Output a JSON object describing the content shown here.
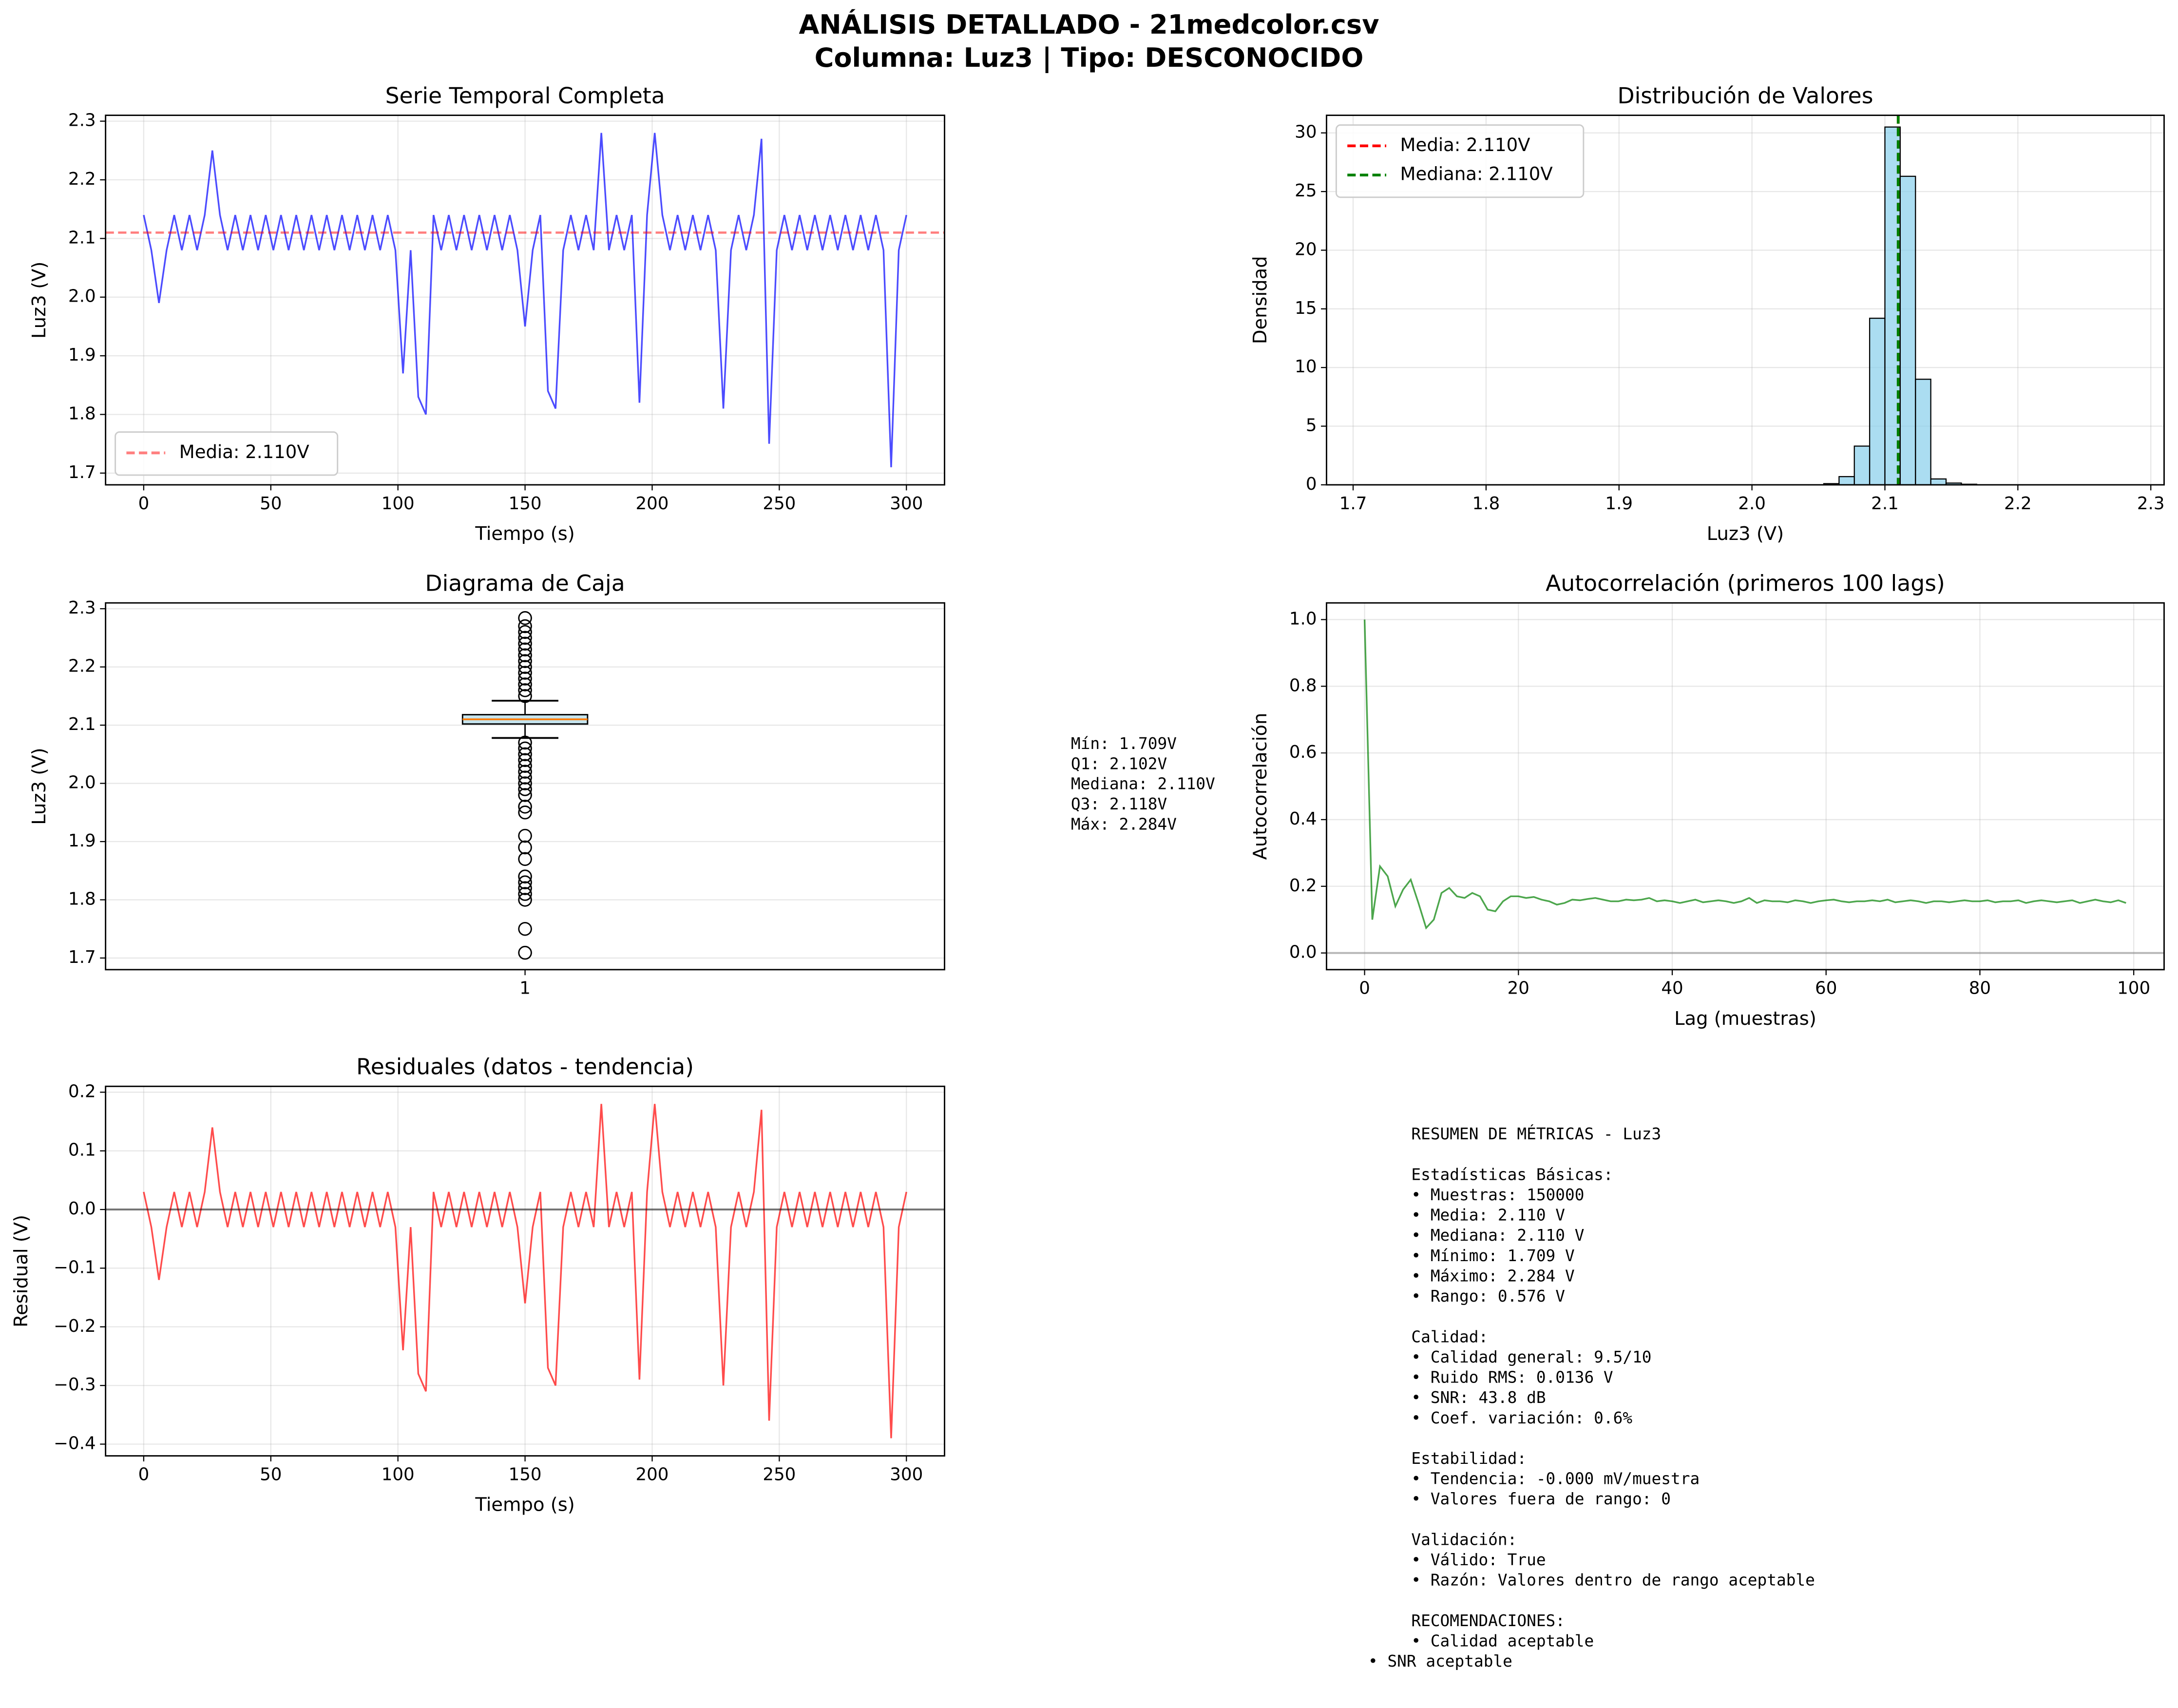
{
  "title_lines": [
    "ANÁLISIS DETALLADO - 21medcolor.csv",
    "Columna: Luz3 | Tipo: DESCONOCIDO"
  ],
  "chart_data": [
    {
      "type": "line",
      "title": "Serie Temporal Completa",
      "xlabel": "Tiempo (s)",
      "ylabel": "Luz3 (V)",
      "grid": true,
      "legend": "lower left",
      "color": "#0000ff",
      "x": [
        0,
        3,
        6,
        9,
        12,
        15,
        18,
        21,
        24,
        27,
        30,
        33,
        36,
        39,
        42,
        45,
        48,
        51,
        54,
        57,
        60,
        63,
        66,
        69,
        72,
        75,
        78,
        81,
        84,
        87,
        90,
        93,
        96,
        99,
        102,
        105,
        108,
        111,
        114,
        117,
        120,
        123,
        126,
        129,
        132,
        135,
        138,
        141,
        144,
        147,
        150,
        153,
        156,
        159,
        162,
        165,
        168,
        171,
        174,
        177,
        180,
        183,
        186,
        189,
        192,
        195,
        198,
        201,
        204,
        207,
        210,
        213,
        216,
        219,
        222,
        225,
        228,
        231,
        234,
        237,
        240,
        243,
        246,
        249,
        252,
        255,
        258,
        261,
        264,
        267,
        270,
        273,
        276,
        279,
        282,
        285,
        288,
        291,
        294,
        297,
        300
      ],
      "values": [
        2.14,
        2.08,
        1.99,
        2.08,
        2.14,
        2.08,
        2.14,
        2.08,
        2.14,
        2.25,
        2.14,
        2.08,
        2.14,
        2.08,
        2.14,
        2.08,
        2.14,
        2.08,
        2.14,
        2.08,
        2.14,
        2.08,
        2.14,
        2.08,
        2.14,
        2.08,
        2.14,
        2.08,
        2.14,
        2.08,
        2.14,
        2.08,
        2.14,
        2.08,
        1.87,
        2.08,
        1.83,
        1.8,
        2.14,
        2.08,
        2.14,
        2.08,
        2.14,
        2.08,
        2.14,
        2.08,
        2.14,
        2.08,
        2.14,
        2.08,
        1.95,
        2.08,
        2.14,
        1.84,
        1.81,
        2.08,
        2.14,
        2.08,
        2.14,
        2.08,
        2.28,
        2.08,
        2.14,
        2.08,
        2.14,
        1.82,
        2.14,
        2.28,
        2.14,
        2.08,
        2.14,
        2.08,
        2.14,
        2.08,
        2.14,
        2.08,
        1.81,
        2.08,
        2.14,
        2.08,
        2.14,
        2.27,
        1.75,
        2.08,
        2.14,
        2.08,
        2.14,
        2.08,
        2.14,
        2.08,
        2.14,
        2.08,
        2.14,
        2.08,
        2.14,
        2.08,
        2.14,
        2.08,
        1.71,
        2.08,
        2.14
      ],
      "hlines": [
        {
          "value": 2.11,
          "name": "Media: 2.110V",
          "color": "#ff0000"
        }
      ],
      "xlim": [
        -15,
        315
      ],
      "ylim": [
        1.68,
        2.31
      ],
      "xticks": [
        0,
        50,
        100,
        150,
        200,
        250,
        300
      ],
      "yticks": [
        1.7,
        1.8,
        1.9,
        {
          "value": 2,
          "label": "2.0"
        },
        2.1,
        2.2,
        2.3
      ]
    },
    {
      "type": "histogram",
      "title": "Distribución de Valores",
      "xlabel": "Luz3 (V)",
      "ylabel": "Densidad",
      "grid": true,
      "legend": "upper left",
      "color": "#87ceeb",
      "bins": [
        1.709,
        1.7205,
        1.732,
        1.7435,
        1.755,
        1.7665,
        1.778,
        1.7895,
        1.801,
        1.8125,
        1.824,
        1.8355,
        1.847,
        1.8585,
        1.87,
        1.8815,
        1.893,
        1.9045,
        1.916,
        1.9275,
        1.939,
        1.9505,
        1.962,
        1.9735,
        1.985,
        1.9965,
        2.008,
        2.0195,
        2.031,
        2.0425,
        2.054,
        2.0655,
        2.077,
        2.0885,
        2.1,
        2.1115,
        2.123,
        2.1345,
        2.146,
        2.1575,
        2.169,
        2.1805,
        2.192,
        2.2035,
        2.215,
        2.2265,
        2.238,
        2.2495,
        2.261,
        2.2725,
        2.284
      ],
      "counts": [
        0.01,
        0.01,
        0.01,
        0.01,
        0.01,
        0.01,
        0.01,
        0.01,
        0.01,
        0.01,
        0.01,
        0.01,
        0.01,
        0.01,
        0.01,
        0.01,
        0.01,
        0.01,
        0.01,
        0.01,
        0.01,
        0.01,
        0.01,
        0.01,
        0.01,
        0.01,
        0.01,
        0.01,
        0.01,
        0.01,
        0.1,
        0.7,
        3.3,
        14.2,
        30.5,
        26.3,
        9.0,
        0.5,
        0.15,
        0.05,
        0.01,
        0.01,
        0.01,
        0.01,
        0.01,
        0.01,
        0.01,
        0.01,
        0.01,
        0.01
      ],
      "vlines": [
        {
          "value": 2.11,
          "name": "Media: 2.110V",
          "color": "#ff0000"
        },
        {
          "value": 2.11,
          "name": "Mediana: 2.110V",
          "color": "#008000"
        }
      ],
      "xlim": [
        1.68,
        2.31
      ],
      "ylim": [
        0,
        31.5
      ],
      "xticks": [
        1.7,
        1.8,
        1.9,
        {
          "value": 2,
          "label": "2.0"
        },
        2.1,
        2.2,
        2.3
      ],
      "yticks": [
        0,
        5,
        10,
        15,
        20,
        25,
        30
      ]
    },
    {
      "type": "box",
      "title": "Diagrama de Caja",
      "ylabel": "Luz3 (V)",
      "grid": true,
      "categories": [
        "1"
      ],
      "q1": 2.102,
      "median": 2.11,
      "q3": 2.118,
      "whisker_low": 2.078,
      "whisker_high": 2.142,
      "outliers": [
        2.15,
        2.16,
        2.17,
        2.18,
        2.19,
        2.2,
        2.21,
        2.22,
        2.23,
        2.24,
        2.25,
        2.26,
        2.27,
        2.284,
        2.07,
        2.06,
        2.05,
        2.04,
        2.03,
        2.02,
        2.01,
        2.0,
        1.99,
        1.98,
        1.96,
        1.95,
        1.91,
        1.89,
        1.87,
        1.84,
        1.83,
        1.82,
        1.81,
        1.8,
        1.75,
        1.709
      ],
      "annotation_lines": [
        "Mín: 1.709V",
        "Q1: 2.102V",
        "Mediana: 2.110V",
        "Q3: 2.118V",
        "Máx: 2.284V"
      ],
      "ylim": [
        1.68,
        2.31
      ],
      "yticks": [
        1.7,
        1.8,
        1.9,
        {
          "value": 2,
          "label": "2.0"
        },
        2.1,
        2.2,
        2.3
      ]
    },
    {
      "type": "line",
      "title": "Autocorrelación (primeros 100 lags)",
      "xlabel": "Lag (muestras)",
      "ylabel": "Autocorrelación",
      "grid": true,
      "color": "#008000",
      "x": [
        0,
        1,
        2,
        3,
        4,
        5,
        6,
        7,
        8,
        9,
        10,
        11,
        12,
        13,
        14,
        15,
        16,
        17,
        18,
        19,
        20,
        21,
        22,
        23,
        24,
        25,
        26,
        27,
        28,
        29,
        30,
        31,
        32,
        33,
        34,
        35,
        36,
        37,
        38,
        39,
        40,
        41,
        42,
        43,
        44,
        45,
        46,
        47,
        48,
        49,
        50,
        51,
        52,
        53,
        54,
        55,
        56,
        57,
        58,
        59,
        60,
        61,
        62,
        63,
        64,
        65,
        66,
        67,
        68,
        69,
        70,
        71,
        72,
        73,
        74,
        75,
        76,
        77,
        78,
        79,
        80,
        81,
        82,
        83,
        84,
        85,
        86,
        87,
        88,
        89,
        90,
        91,
        92,
        93,
        94,
        95,
        96,
        97,
        98,
        99
      ],
      "values": [
        1.0,
        0.1,
        0.26,
        0.23,
        0.14,
        0.19,
        0.22,
        0.15,
        0.075,
        0.1,
        0.18,
        0.195,
        0.17,
        0.165,
        0.18,
        0.17,
        0.13,
        0.125,
        0.155,
        0.17,
        0.17,
        0.165,
        0.168,
        0.16,
        0.155,
        0.145,
        0.15,
        0.16,
        0.158,
        0.162,
        0.165,
        0.16,
        0.155,
        0.155,
        0.16,
        0.158,
        0.16,
        0.165,
        0.155,
        0.158,
        0.155,
        0.15,
        0.155,
        0.16,
        0.152,
        0.155,
        0.158,
        0.155,
        0.15,
        0.155,
        0.165,
        0.15,
        0.158,
        0.155,
        0.155,
        0.152,
        0.158,
        0.155,
        0.15,
        0.155,
        0.158,
        0.16,
        0.155,
        0.152,
        0.155,
        0.155,
        0.158,
        0.155,
        0.16,
        0.152,
        0.155,
        0.158,
        0.155,
        0.15,
        0.155,
        0.155,
        0.152,
        0.155,
        0.158,
        0.155,
        0.155,
        0.158,
        0.152,
        0.155,
        0.155,
        0.158,
        0.15,
        0.155,
        0.158,
        0.155,
        0.152,
        0.155,
        0.158,
        0.15,
        0.155,
        0.16,
        0.155,
        0.152,
        0.158,
        0.15
      ],
      "hlines": [
        {
          "value": 0,
          "color": "#808080"
        }
      ],
      "xlim": [
        -4.95,
        103.95
      ],
      "ylim": [
        -0.05,
        1.05
      ],
      "xticks": [
        0,
        20,
        40,
        60,
        80,
        100
      ],
      "yticks": [
        {
          "value": 0,
          "label": "0.0"
        },
        0.2,
        0.4,
        0.6,
        0.8,
        {
          "value": 1,
          "label": "1.0"
        }
      ]
    },
    {
      "type": "line",
      "title": "Residuales (datos - tendencia)",
      "xlabel": "Tiempo (s)",
      "ylabel": "Residual (V)",
      "grid": true,
      "color": "#ff0000",
      "x": [
        0,
        3,
        6,
        9,
        12,
        15,
        18,
        21,
        24,
        27,
        30,
        33,
        36,
        39,
        42,
        45,
        48,
        51,
        54,
        57,
        60,
        63,
        66,
        69,
        72,
        75,
        78,
        81,
        84,
        87,
        90,
        93,
        96,
        99,
        102,
        105,
        108,
        111,
        114,
        117,
        120,
        123,
        126,
        129,
        132,
        135,
        138,
        141,
        144,
        147,
        150,
        153,
        156,
        159,
        162,
        165,
        168,
        171,
        174,
        177,
        180,
        183,
        186,
        189,
        192,
        195,
        198,
        201,
        204,
        207,
        210,
        213,
        216,
        219,
        222,
        225,
        228,
        231,
        234,
        237,
        240,
        243,
        246,
        249,
        252,
        255,
        258,
        261,
        264,
        267,
        270,
        273,
        276,
        279,
        282,
        285,
        288,
        291,
        294,
        297,
        300
      ],
      "values": [
        0.03,
        -0.03,
        -0.12,
        -0.03,
        0.03,
        -0.03,
        0.03,
        -0.03,
        0.03,
        0.14,
        0.03,
        -0.03,
        0.03,
        -0.03,
        0.03,
        -0.03,
        0.03,
        -0.03,
        0.03,
        -0.03,
        0.03,
        -0.03,
        0.03,
        -0.03,
        0.03,
        -0.03,
        0.03,
        -0.03,
        0.03,
        -0.03,
        0.03,
        -0.03,
        0.03,
        -0.03,
        -0.24,
        -0.03,
        -0.28,
        -0.31,
        0.03,
        -0.03,
        0.03,
        -0.03,
        0.03,
        -0.03,
        0.03,
        -0.03,
        0.03,
        -0.03,
        0.03,
        -0.03,
        -0.16,
        -0.03,
        0.03,
        -0.27,
        -0.3,
        -0.03,
        0.03,
        -0.03,
        0.03,
        -0.03,
        0.18,
        -0.03,
        0.03,
        -0.03,
        0.03,
        -0.29,
        0.03,
        0.18,
        0.03,
        -0.03,
        0.03,
        -0.03,
        0.03,
        -0.03,
        0.03,
        -0.03,
        -0.3,
        -0.03,
        0.03,
        -0.03,
        0.03,
        0.17,
        -0.36,
        -0.03,
        0.03,
        -0.03,
        0.03,
        -0.03,
        0.03,
        -0.03,
        0.03,
        -0.03,
        0.03,
        -0.03,
        0.03,
        -0.03,
        0.03,
        -0.03,
        -0.39,
        -0.03,
        0.03
      ],
      "hlines": [
        {
          "value": 0,
          "color": "#000000"
        }
      ],
      "xlim": [
        -15,
        315
      ],
      "ylim": [
        -0.42,
        0.21
      ],
      "xticks": [
        0,
        50,
        100,
        150,
        200,
        250,
        300
      ],
      "yticks": [
        {
          "value": -0.4,
          "label": "−0.4"
        },
        {
          "value": -0.3,
          "label": "−0.3"
        },
        {
          "value": -0.2,
          "label": "−0.2"
        },
        {
          "value": -0.1,
          "label": "−0.1"
        },
        {
          "value": 0,
          "label": "0.0"
        },
        0.1,
        0.2
      ]
    }
  ],
  "summary": {
    "heading": "RESUMEN DE MÉTRICAS - Luz3",
    "sections": [
      {
        "title": "Estadísticas Básicas:",
        "items": [
          "• Muestras: 150000",
          "• Media: 2.110 V",
          "• Mediana: 2.110 V",
          "• Mínimo: 1.709 V",
          "• Máximo: 2.284 V",
          "• Rango: 0.576 V"
        ]
      },
      {
        "title": "Calidad:",
        "items": [
          "• Calidad general: 9.5/10",
          "• Ruido RMS: 0.0136 V",
          "• SNR: 43.8 dB",
          "• Coef. variación: 0.6%"
        ]
      },
      {
        "title": "Estabilidad:",
        "items": [
          "• Tendencia: -0.000 mV/muestra",
          "• Valores fuera de rango: 0"
        ]
      },
      {
        "title": "Validación:",
        "items": [
          "• Válido: True",
          "• Razón: Valores dentro de rango aceptable"
        ]
      },
      {
        "title": "RECOMENDACIONES:",
        "items": [
          "• Calidad aceptable",
          "• SNR aceptable"
        ]
      }
    ]
  }
}
